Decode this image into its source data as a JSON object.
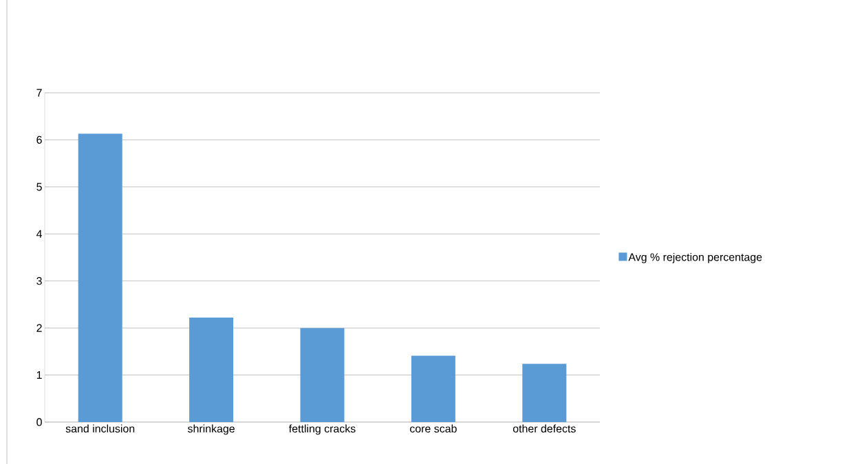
{
  "chart_data": {
    "type": "bar",
    "categories": [
      "sand inclusion",
      "shrinkage",
      "fettling cracks",
      "core scab",
      "other defects"
    ],
    "series": [
      {
        "name": "Avg % rejection percentage",
        "color": "#5b9bd5",
        "values": [
          6.13,
          2.22,
          2.0,
          1.41,
          1.24
        ]
      }
    ],
    "ylim": [
      0,
      7
    ],
    "yticks": [
      0,
      1,
      2,
      3,
      4,
      5,
      6,
      7
    ],
    "grid": "y",
    "legend": "right"
  }
}
